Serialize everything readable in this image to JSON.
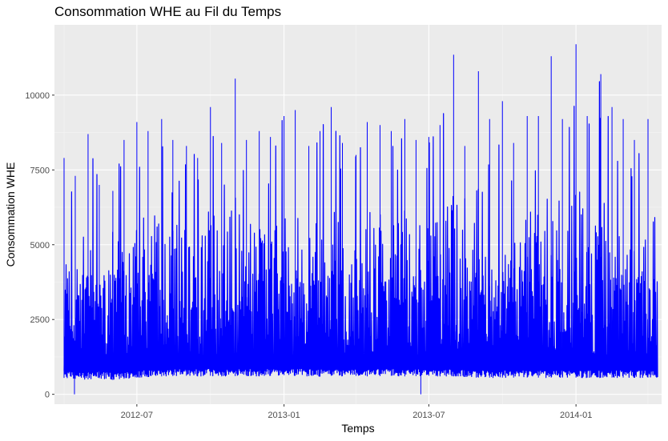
{
  "chart_data": {
    "type": "line",
    "title": "Consommation WHE au Fil du Temps",
    "xlabel": "Temps",
    "ylabel": "Consommation WHE",
    "x_ticks": [
      "2012-07",
      "2013-01",
      "2013-07",
      "2014-01"
    ],
    "y_ticks": [
      "0",
      "2500",
      "5000",
      "7500",
      "10000"
    ],
    "xlim": [
      "2012-03-20",
      "2014-04-18"
    ],
    "ylim": [
      -330,
      12350
    ],
    "grid": true,
    "legend": "none",
    "line_color": "#0000ff",
    "panel_color": "#ebebeb",
    "series": [
      {
        "x": [
          "2012-04-01",
          "2012-04-15",
          "2012-05-01",
          "2012-05-15",
          "2012-06-01",
          "2012-06-15",
          "2012-07-01",
          "2012-07-15",
          "2012-08-01",
          "2012-08-15",
          "2012-09-01",
          "2012-09-15",
          "2012-10-01",
          "2012-10-15",
          "2012-11-01",
          "2012-11-15",
          "2012-12-01",
          "2012-12-15",
          "2013-01-01",
          "2013-01-15",
          "2013-02-01",
          "2013-02-15",
          "2013-03-01",
          "2013-03-15",
          "2013-04-01",
          "2013-04-15",
          "2013-05-01",
          "2013-05-15",
          "2013-06-01",
          "2013-06-15",
          "2013-07-01",
          "2013-07-15",
          "2013-08-01",
          "2013-08-15",
          "2013-09-01",
          "2013-09-15",
          "2013-10-01",
          "2013-10-15",
          "2013-11-01",
          "2013-11-15",
          "2013-12-01",
          "2013-12-15",
          "2014-01-01",
          "2014-01-15",
          "2014-02-01",
          "2014-02-15",
          "2014-03-01",
          "2014-03-15",
          "2014-04-01"
        ],
        "min": [
          550,
          520,
          500,
          540,
          480,
          520,
          560,
          580,
          600,
          610,
          620,
          600,
          620,
          600,
          610,
          620,
          600,
          620,
          640,
          620,
          610,
          600,
          620,
          610,
          620,
          600,
          610,
          620,
          600,
          610,
          620,
          600,
          600,
          580,
          560,
          560,
          560,
          560,
          560,
          560,
          560,
          560,
          560,
          560,
          560,
          560,
          560,
          560,
          560
        ],
        "max": [
          7900,
          7300,
          8700,
          7000,
          6800,
          8500,
          9100,
          8800,
          9200,
          8500,
          8300,
          7900,
          9600,
          8400,
          10550,
          8500,
          8800,
          8600,
          9300,
          9500,
          8300,
          8800,
          9600,
          8400,
          8000,
          9100,
          9000,
          8800,
          9200,
          8500,
          8600,
          9000,
          11350,
          8300,
          10800,
          9200,
          9800,
          8400,
          9300,
          9300,
          11300,
          9200,
          11700,
          9300,
          10700,
          9600,
          9200,
          8500,
          9200
        ],
        "spikes_low": [
          [
            "2012-04-14",
            0
          ],
          [
            "2013-06-21",
            0
          ],
          [
            "2013-08-04",
            2100
          ]
        ]
      }
    ]
  }
}
